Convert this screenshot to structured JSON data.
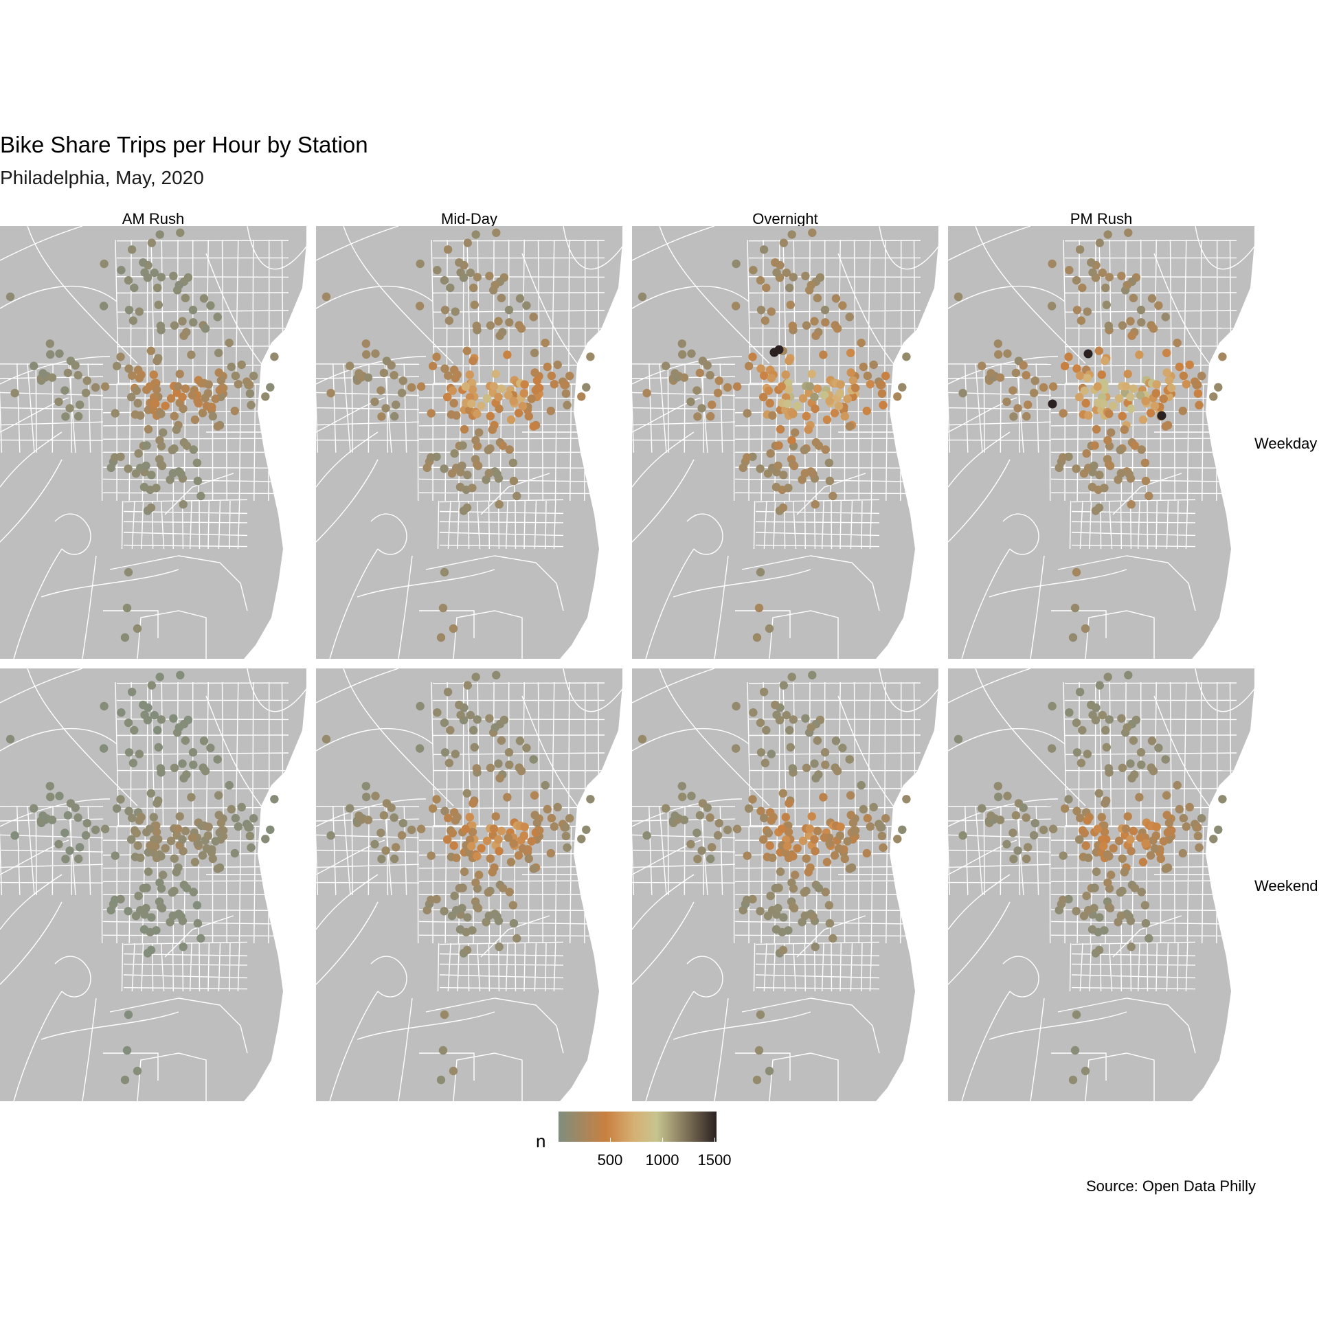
{
  "title": "Bike Share Trips per Hour by Station",
  "subtitle": "Philadelphia, May, 2020",
  "caption": "Source: Open Data Philly",
  "columns": [
    "AM Rush",
    "Mid-Day",
    "Overnight",
    "PM Rush"
  ],
  "rows": [
    "Weekday",
    "Weekend"
  ],
  "legend": {
    "title": "n",
    "ticks": [
      500,
      1000,
      1500
    ],
    "labels": [
      "500",
      "1000",
      "1500"
    ],
    "range": [
      0,
      1520
    ],
    "colors": [
      "#7e8e7f",
      "#c98040",
      "#d6b074",
      "#c7c48f",
      "#7a6e55",
      "#2b2120"
    ]
  },
  "map": {
    "land_color": "#bebebe",
    "street_color": "#ffffff",
    "background_color": "#ffffff"
  },
  "chart_data": {
    "type": "scatter",
    "description_type": "faceted point map",
    "facets_x": [
      "AM Rush",
      "Mid-Day",
      "Overnight",
      "PM Rush"
    ],
    "facets_y": [
      "Weekday",
      "Weekend"
    ],
    "color_variable": "n",
    "approx_level_by_facet": {
      "Weekday": {
        "AM Rush": 250,
        "Mid-Day": 450,
        "Overnight": 550,
        "PM Rush": 550
      },
      "Weekend": {
        "AM Rush": 120,
        "Mid-Day": 350,
        "Overnight": 320,
        "PM Rush": 300
      }
    },
    "max_value_facets": [
      "Weekday Overnight",
      "Weekday PM Rush"
    ],
    "max_value": 1500
  }
}
